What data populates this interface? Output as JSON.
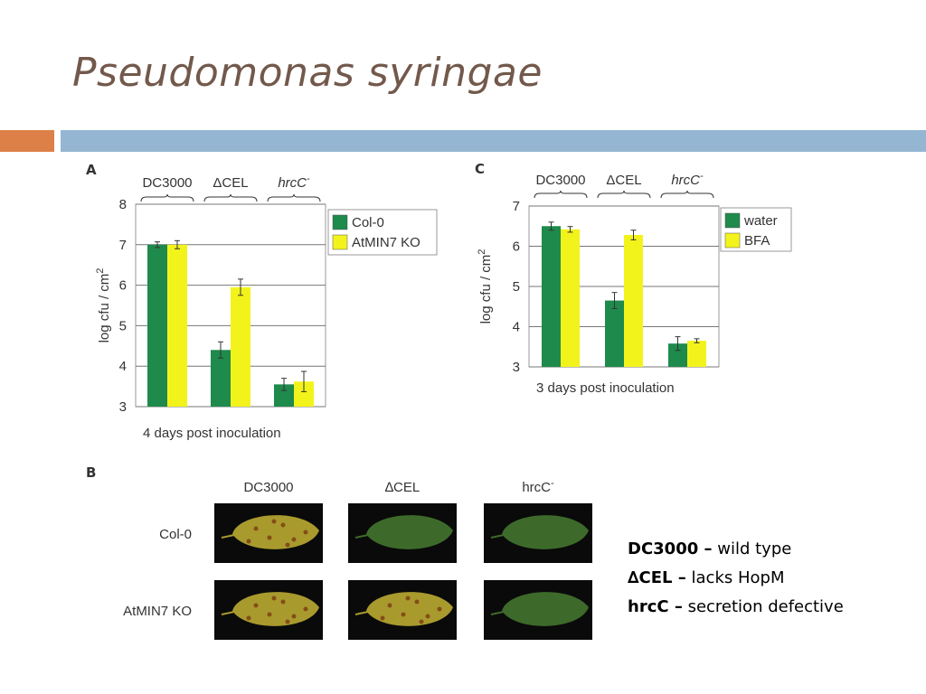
{
  "slide": {
    "title": "Pseudomonas syringae"
  },
  "colors": {
    "accent_orange": "#dd8047",
    "accent_blue": "#94b6d2",
    "title": "#72594b",
    "green": "#1e8a4c",
    "yellow": "#f3f31c",
    "leaf_healthy": "#3d6a2a",
    "leaf_diseased": "#a99a2e"
  },
  "chart_data": [
    {
      "panel": "A",
      "type": "bar",
      "categories": [
        "DC3000",
        "ΔCEL",
        "hrcC-"
      ],
      "categories_display": [
        {
          "text": "DC3000",
          "sup": "",
          "italic": false
        },
        {
          "text": "ΔCEL",
          "sup": "",
          "italic": false
        },
        {
          "text": "hrcC",
          "sup": "-",
          "italic": true
        }
      ],
      "series": [
        {
          "name": "Col-0",
          "color": "#1e8a4c",
          "values": [
            7.0,
            4.4,
            3.55
          ],
          "errors": [
            0.07,
            0.2,
            0.15
          ]
        },
        {
          "name": "AtMIN7 KO",
          "color": "#f3f31c",
          "values": [
            7.0,
            5.95,
            3.62
          ],
          "errors": [
            0.1,
            0.2,
            0.25
          ]
        }
      ],
      "ylabel": "log cfu / cm",
      "ylabel_sup": "2",
      "xlabel": "4 days post inoculation",
      "ylim": [
        3,
        8
      ],
      "yticks": [
        3,
        4,
        5,
        6,
        7,
        8
      ],
      "grid": true,
      "legend_position": "right"
    },
    {
      "panel": "C",
      "type": "bar",
      "categories": [
        "DC3000",
        "ΔCEL",
        "hrcC-"
      ],
      "categories_display": [
        {
          "text": "DC3000",
          "sup": "",
          "italic": false
        },
        {
          "text": "ΔCEL",
          "sup": "",
          "italic": false
        },
        {
          "text": "hrcC",
          "sup": "-",
          "italic": true
        }
      ],
      "series": [
        {
          "name": "water",
          "color": "#1e8a4c",
          "values": [
            6.5,
            4.65,
            3.58
          ],
          "errors": [
            0.1,
            0.2,
            0.17
          ]
        },
        {
          "name": "BFA",
          "color": "#f3f31c",
          "values": [
            6.42,
            6.28,
            3.65
          ],
          "errors": [
            0.07,
            0.12,
            0.05
          ]
        }
      ],
      "ylabel": "log cfu / cm",
      "ylabel_sup": "2",
      "xlabel": "3 days post inoculation",
      "ylim": [
        3,
        7
      ],
      "yticks": [
        3,
        4,
        5,
        6,
        7
      ],
      "grid": true,
      "legend_position": "right"
    }
  ],
  "leaf_panel": {
    "letter": "B",
    "columns": [
      {
        "text": "DC3000",
        "sup": "",
        "italic": false
      },
      {
        "text": "∆CEL",
        "sup": "",
        "italic": false
      },
      {
        "text": "hrcC",
        "sup": "-",
        "italic": true
      }
    ],
    "rows": [
      "Col-0",
      "AtMIN7 KO"
    ],
    "diseased": [
      [
        true,
        false,
        false
      ],
      [
        true,
        true,
        false
      ]
    ]
  },
  "key": [
    {
      "term": "DC3000 –",
      "desc": " wild type"
    },
    {
      "term": "∆CEL –",
      "desc": " lacks HopM"
    },
    {
      "term": "hrcC –",
      "desc": " secretion defective"
    }
  ]
}
